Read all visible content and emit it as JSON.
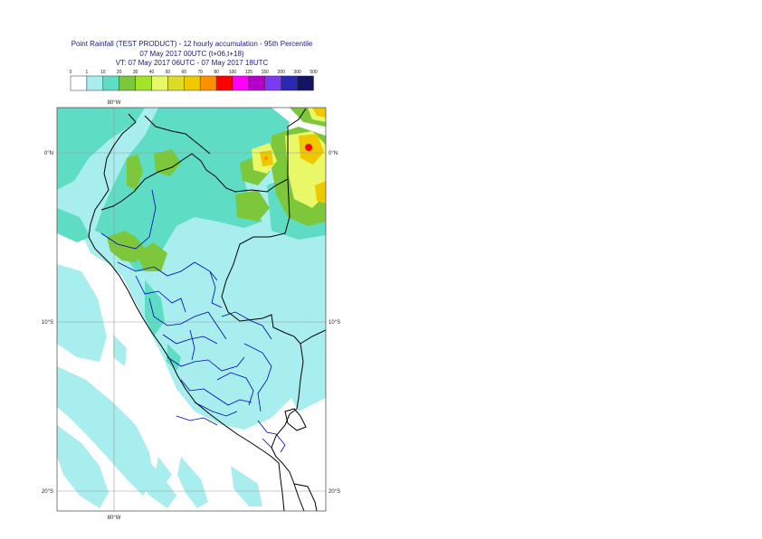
{
  "title": {
    "line1": "Point Rainfall (TEST PRODUCT) - 12 hourly accumulation - 95th Percentile",
    "line2": "07 May 2017 00UTC (t+06,t+18)",
    "line3": "VT: 07 May 2017 06UTC - 07 May 2017 18UTC"
  },
  "legend": {
    "thresholds": [
      "0",
      "1",
      "10",
      "20",
      "30",
      "40",
      "50",
      "60",
      "70",
      "80",
      "100",
      "125",
      "150",
      "200",
      "300",
      "500"
    ],
    "colors": [
      "#ffffff",
      "#a8eeee",
      "#5edcc4",
      "#7cc83a",
      "#a4e428",
      "#e8f866",
      "#dcdc28",
      "#f0c800",
      "#ff9000",
      "#ff0000",
      "#ff00ff",
      "#b400c8",
      "#7a3cf0",
      "#2828b4",
      "#141464"
    ]
  },
  "map": {
    "grid": {
      "top_labels": [
        "80°W"
      ],
      "bottom_labels": [
        "80°W"
      ],
      "left_labels": [
        "0°N",
        "10°S",
        "20°S"
      ],
      "right_labels": [
        "0°N",
        "10°S",
        "20°S"
      ]
    },
    "colors": {
      "light": "#a8eeee",
      "teal": "#5edcc4",
      "green": "#7cc83a",
      "lime": "#a4e428",
      "yellow": "#e8f866",
      "olive": "#dcdc28",
      "amber": "#f0c800",
      "orange": "#ff9000",
      "red": "#ff0000",
      "border_country": "#000000",
      "border_region": "#0000b4",
      "grid": "#9a9a9a"
    }
  }
}
